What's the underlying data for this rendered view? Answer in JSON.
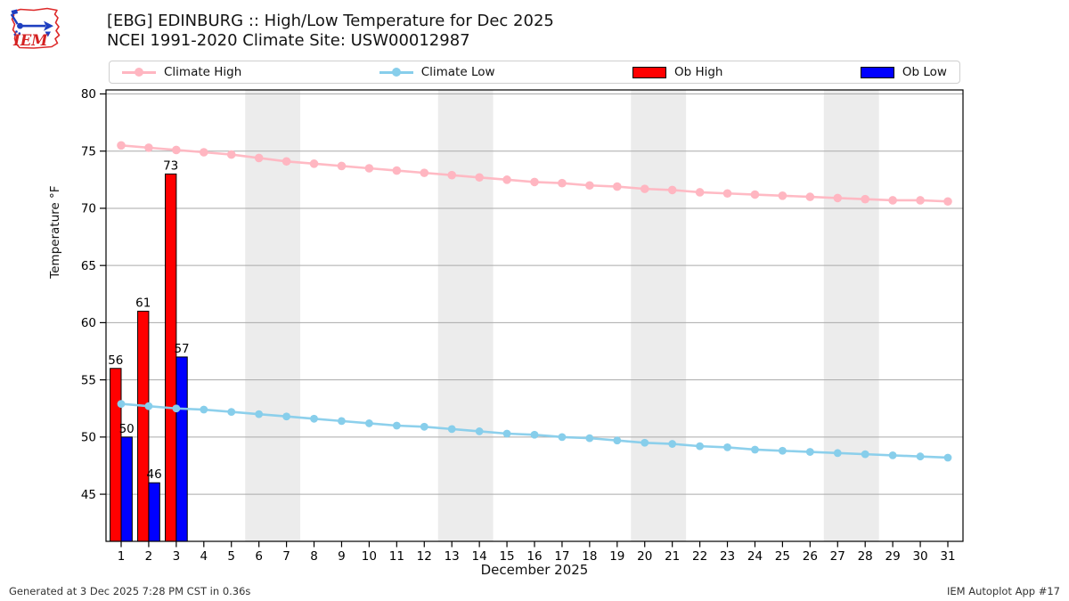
{
  "header": {
    "title": "[EBG] EDINBURG :: High/Low Temperature for Dec 2025",
    "subtitle": "NCEI 1991-2020 Climate Site: USW00012987"
  },
  "logo": {
    "text": "IEM"
  },
  "legend": {
    "items": [
      {
        "label": "Climate High",
        "type": "line",
        "color": "#ffb6c1"
      },
      {
        "label": "Climate Low",
        "type": "line",
        "color": "#87ceeb"
      },
      {
        "label": "Ob High",
        "type": "patch",
        "color": "#ff0000"
      },
      {
        "label": "Ob Low",
        "type": "patch",
        "color": "#0000ff"
      }
    ]
  },
  "chart_data": {
    "type": "line+bar",
    "title": "[EBG] EDINBURG :: High/Low Temperature for Dec 2025",
    "subtitle": "NCEI 1991-2020 Climate Site: USW00012987",
    "xlabel": "December 2025",
    "ylabel": "Temperature °F",
    "xlim": [
      0.45,
      31.55
    ],
    "ylim": [
      41,
      80.4
    ],
    "grid": true,
    "grid_color": "#aaaaaa",
    "band_color": "#ececec",
    "frame_color": "#000000",
    "x": [
      1,
      2,
      3,
      4,
      5,
      6,
      7,
      8,
      9,
      10,
      11,
      12,
      13,
      14,
      15,
      16,
      17,
      18,
      19,
      20,
      21,
      22,
      23,
      24,
      25,
      26,
      27,
      28,
      29,
      30,
      31
    ],
    "xticks": [
      1,
      2,
      3,
      4,
      5,
      6,
      7,
      8,
      9,
      10,
      11,
      12,
      13,
      14,
      15,
      16,
      17,
      18,
      19,
      20,
      21,
      22,
      23,
      24,
      25,
      26,
      27,
      28,
      29,
      30,
      31
    ],
    "yticks": [
      45,
      50,
      55,
      60,
      65,
      70,
      75,
      80
    ],
    "weekend_bands": [
      [
        5.5,
        7.5
      ],
      [
        12.5,
        14.5
      ],
      [
        19.5,
        21.5
      ],
      [
        26.5,
        28.5
      ]
    ],
    "series": [
      {
        "name": "Climate High",
        "type": "line",
        "values": [
          75.5,
          75.3,
          75.1,
          74.9,
          74.7,
          74.4,
          74.1,
          73.9,
          73.7,
          73.5,
          73.3,
          73.1,
          72.9,
          72.7,
          72.5,
          72.3,
          72.2,
          72.0,
          71.9,
          71.7,
          71.6,
          71.4,
          71.3,
          71.2,
          71.1,
          71.0,
          70.9,
          70.8,
          70.7,
          70.7,
          70.6
        ]
      },
      {
        "name": "Climate Low",
        "type": "line",
        "values": [
          52.9,
          52.7,
          52.5,
          52.4,
          52.2,
          52.0,
          51.8,
          51.6,
          51.4,
          51.2,
          51.0,
          50.9,
          50.7,
          50.5,
          50.3,
          50.2,
          50.0,
          49.9,
          49.7,
          49.5,
          49.4,
          49.2,
          49.1,
          48.9,
          48.8,
          48.7,
          48.6,
          48.5,
          48.4,
          48.3,
          48.2
        ]
      },
      {
        "name": "Ob High",
        "type": "bar",
        "days": [
          1,
          2,
          3
        ],
        "values": [
          56,
          61,
          73
        ],
        "labels": [
          "56",
          "61",
          "73"
        ]
      },
      {
        "name": "Ob Low",
        "type": "bar",
        "days": [
          1,
          2,
          3
        ],
        "values": [
          50,
          46,
          57
        ],
        "labels": [
          "50",
          "46",
          "57"
        ]
      }
    ]
  },
  "footer": {
    "left": "Generated at 3 Dec 2025 7:28 PM CST in 0.36s",
    "right": "IEM Autoplot App #17"
  }
}
